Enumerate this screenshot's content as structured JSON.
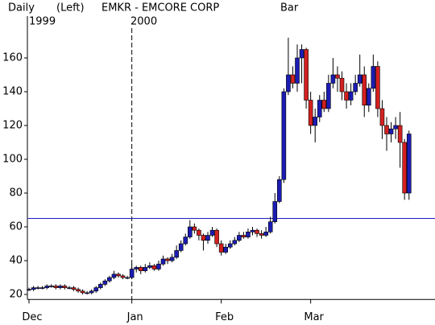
{
  "chart_data": {
    "type": "candlestick",
    "period": "Daily",
    "axis_side": "(Left)",
    "title": "EMKR - EMCORE CORP",
    "style": "Bar",
    "year_labels": [
      "1999",
      "2000"
    ],
    "categories": [
      "Dec",
      null,
      null,
      null,
      null,
      null,
      null,
      null,
      null,
      null,
      null,
      null,
      null,
      null,
      null,
      null,
      null,
      null,
      null,
      null,
      null,
      null,
      null,
      "Jan",
      null,
      null,
      null,
      null,
      null,
      null,
      null,
      null,
      null,
      null,
      null,
      null,
      null,
      null,
      null,
      null,
      null,
      null,
      null,
      "Feb",
      null,
      null,
      null,
      null,
      null,
      null,
      null,
      null,
      null,
      null,
      null,
      null,
      null,
      null,
      null,
      null,
      null,
      null,
      null,
      "Mar",
      null,
      null,
      null,
      null,
      null,
      null,
      null,
      null,
      null,
      null,
      null,
      null,
      null,
      null,
      null,
      null,
      null,
      null,
      null,
      null,
      null,
      null
    ],
    "open": [
      23,
      23,
      24,
      24,
      24,
      25,
      25,
      24,
      25,
      24,
      24,
      23,
      22,
      21,
      21,
      22,
      24,
      26,
      28,
      30,
      32,
      31,
      30,
      30,
      35,
      36,
      34,
      36,
      37,
      35,
      38,
      41,
      40,
      42,
      46,
      50,
      54,
      60,
      58,
      55,
      52,
      55,
      58,
      50,
      45,
      48,
      50,
      52,
      55,
      54,
      57,
      58,
      56,
      55,
      57,
      63,
      75,
      88,
      140,
      150,
      145,
      160,
      165,
      135,
      120,
      125,
      135,
      130,
      145,
      150,
      148,
      140,
      135,
      140,
      145,
      150,
      132,
      142,
      155,
      130,
      120,
      115,
      118,
      120,
      110,
      80
    ],
    "high": [
      24,
      25,
      25,
      25,
      26,
      26,
      26,
      26,
      26,
      25,
      25,
      24,
      23,
      22,
      23,
      25,
      27,
      29,
      31,
      34,
      33,
      32,
      31,
      38,
      37,
      37,
      38,
      39,
      38,
      40,
      43,
      42,
      44,
      49,
      52,
      56,
      64,
      62,
      59,
      56,
      57,
      60,
      59,
      52,
      50,
      52,
      54,
      57,
      57,
      59,
      60,
      59,
      58,
      60,
      66,
      80,
      90,
      142,
      172,
      155,
      168,
      168,
      166,
      140,
      130,
      138,
      140,
      150,
      160,
      155,
      152,
      145,
      145,
      150,
      162,
      155,
      145,
      162,
      158,
      135,
      125,
      122,
      125,
      128,
      112,
      117
    ],
    "low": [
      22,
      22,
      23,
      23,
      23,
      24,
      23,
      23,
      23,
      23,
      22,
      21,
      20,
      20,
      20,
      21,
      23,
      25,
      27,
      29,
      30,
      29,
      29,
      29,
      33,
      32,
      33,
      35,
      34,
      34,
      37,
      38,
      39,
      41,
      45,
      49,
      53,
      56,
      52,
      46,
      50,
      54,
      48,
      43,
      44,
      47,
      49,
      51,
      53,
      53,
      55,
      54,
      53,
      54,
      56,
      62,
      74,
      86,
      138,
      142,
      140,
      145,
      130,
      115,
      110,
      122,
      128,
      128,
      142,
      140,
      135,
      130,
      132,
      138,
      143,
      125,
      128,
      140,
      125,
      112,
      105,
      110,
      112,
      95,
      76,
      76
    ],
    "close": [
      23,
      24,
      24,
      24,
      25,
      25,
      24,
      25,
      24,
      24,
      23,
      22,
      21,
      21,
      22,
      24,
      26,
      28,
      30,
      32,
      31,
      30,
      30,
      35,
      36,
      34,
      36,
      37,
      35,
      38,
      41,
      40,
      42,
      46,
      50,
      54,
      60,
      58,
      55,
      52,
      55,
      58,
      50,
      45,
      48,
      50,
      52,
      55,
      54,
      57,
      58,
      56,
      55,
      57,
      63,
      75,
      88,
      140,
      150,
      145,
      160,
      165,
      135,
      120,
      125,
      135,
      130,
      145,
      150,
      148,
      140,
      135,
      140,
      145,
      150,
      132,
      142,
      155,
      130,
      120,
      115,
      118,
      120,
      110,
      80,
      115
    ],
    "up_color": "#1c1cb4",
    "down_color": "#d42020",
    "reference_line": {
      "value": 65,
      "color": "#2020c0"
    },
    "ylim": [
      17,
      180
    ],
    "yticks": [
      20,
      40,
      60,
      80,
      100,
      120,
      140,
      160
    ]
  }
}
